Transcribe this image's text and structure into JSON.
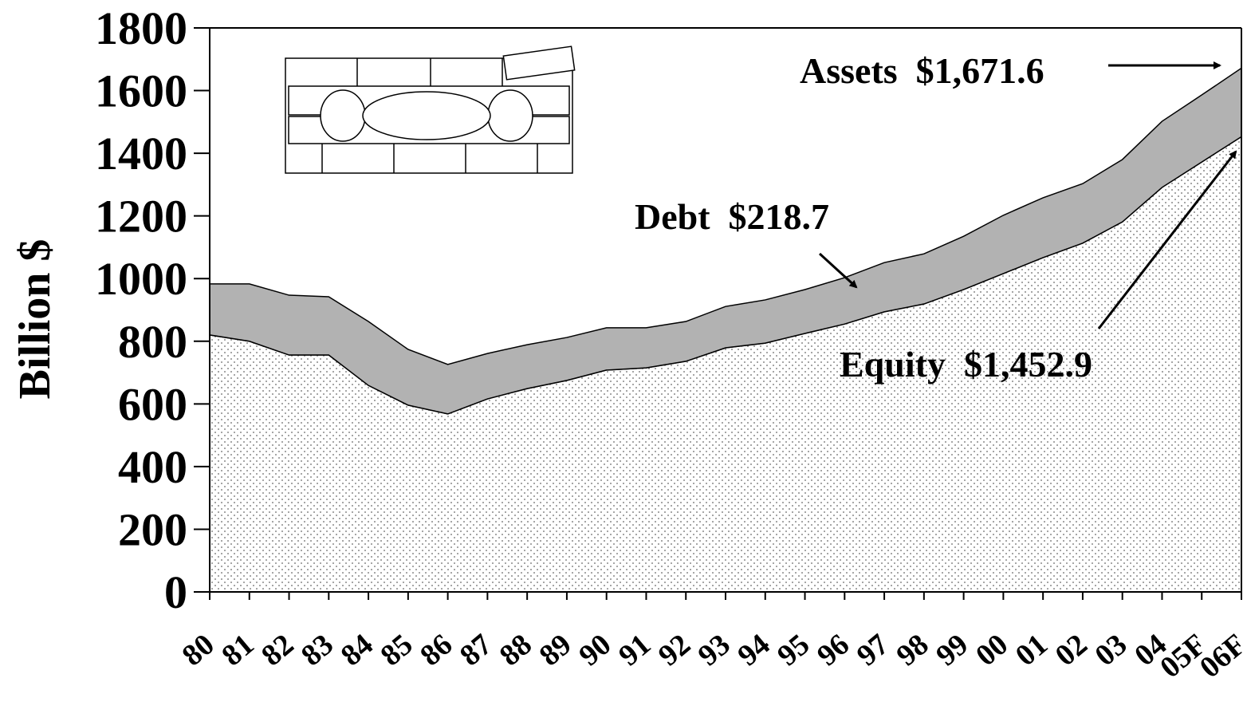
{
  "chart_data": {
    "type": "stacked_area",
    "y_label": "Billion $",
    "categories": [
      "80",
      "81",
      "82",
      "83",
      "84",
      "85",
      "86",
      "87",
      "88",
      "89",
      "90",
      "91",
      "92",
      "93",
      "94",
      "95",
      "96",
      "97",
      "98",
      "99",
      "00",
      "01",
      "02",
      "03",
      "04",
      "05F",
      "06F"
    ],
    "series": [
      {
        "name": "Equity",
        "color": "#ffffff",
        "values": [
          820,
          800,
          756,
          756,
          659,
          596,
          568,
          616,
          649,
          675,
          708,
          715,
          736,
          779,
          794,
          825,
          855,
          894,
          919,
          965,
          1016,
          1067,
          1113,
          1181,
          1291,
          1372,
          1452.9
        ]
      },
      {
        "name": "Debt",
        "color": "#b2b2b2",
        "values": [
          163,
          183,
          191,
          186,
          204,
          178,
          158,
          145,
          140,
          137,
          135,
          128,
          127,
          132,
          138,
          140,
          148,
          157,
          160,
          170,
          186,
          191,
          190,
          199,
          211,
          214,
          218.7
        ]
      }
    ],
    "ylim": [
      0,
      1800
    ],
    "yticks": [
      0,
      200,
      400,
      600,
      800,
      1000,
      1200,
      1400,
      1600,
      1800
    ],
    "annotations": [
      "Assets  $1,671.6",
      "Debt  $218.7",
      "Equity  $1,452.9"
    ]
  }
}
